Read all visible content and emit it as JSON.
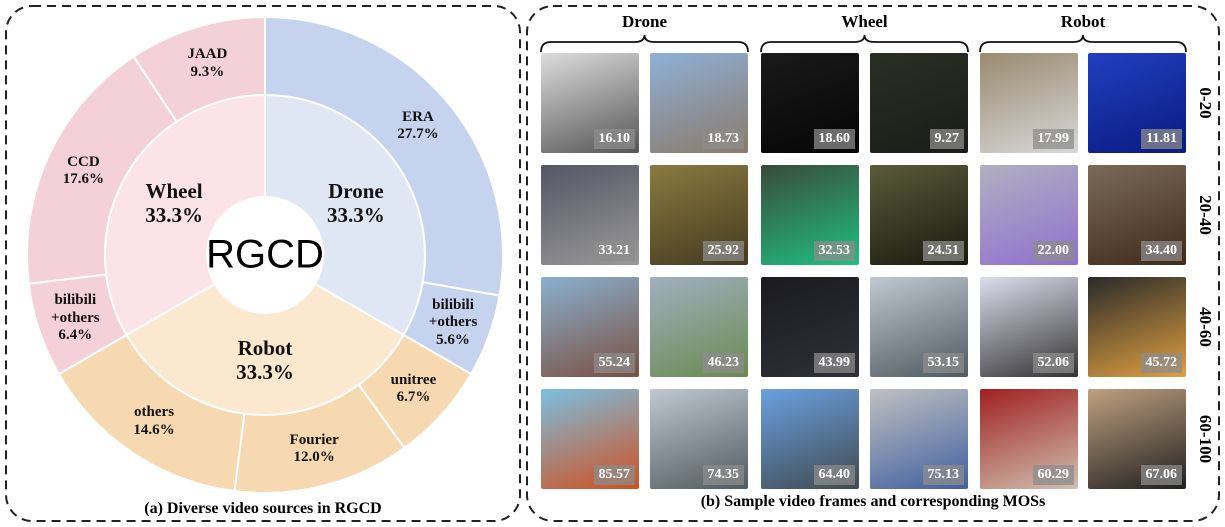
{
  "chart_data": {
    "type": "sunburst",
    "caption": "(a) Diverse video sources in RGCD",
    "center_label": "RGCD",
    "categories": [
      "Drone",
      "Robot",
      "Wheel"
    ],
    "values": [
      33.3,
      33.3,
      33.3
    ],
    "value_labels": [
      "33.3%",
      "33.3%",
      "33.3%"
    ],
    "colors": [
      "#dfe6f4",
      "#fce7cf",
      "#fbe3e8"
    ],
    "children": [
      {
        "categories": [
          "ERA",
          "bilibili +others"
        ],
        "values": [
          27.7,
          5.6
        ],
        "value_labels": [
          "27.7%",
          "5.6%"
        ],
        "color": "#c6d3ee"
      },
      {
        "categories": [
          "unitree",
          "Fourier",
          "others"
        ],
        "values": [
          6.7,
          12.0,
          14.6
        ],
        "value_labels": [
          "6.7%",
          "12.0%",
          "14.6%"
        ],
        "color": "#f7d9b1"
      },
      {
        "categories": [
          "bilibili +others",
          "CCD",
          "JAAD"
        ],
        "values": [
          6.4,
          17.6,
          9.3
        ],
        "value_labels": [
          "6.4%",
          "17.6%",
          "9.3%"
        ],
        "color": "#f4d0d8"
      }
    ]
  },
  "grid": {
    "caption": "(b) Sample video frames and corresponding MOSs",
    "columns": [
      "Drone",
      "Wheel",
      "Robot"
    ],
    "rows": [
      {
        "label": "0-20",
        "scores": [
          "16.10",
          "18.73",
          "18.60",
          "9.27",
          "17.99",
          "11.81"
        ]
      },
      {
        "label": "20-40",
        "scores": [
          "33.21",
          "25.92",
          "32.53",
          "24.51",
          "22.00",
          "34.40"
        ]
      },
      {
        "label": "40-60",
        "scores": [
          "55.24",
          "46.23",
          "43.99",
          "53.15",
          "52.06",
          "45.72"
        ]
      },
      {
        "label": "60-100",
        "scores": [
          "85.57",
          "74.35",
          "64.40",
          "75.13",
          "60.29",
          "67.06"
        ]
      }
    ]
  }
}
